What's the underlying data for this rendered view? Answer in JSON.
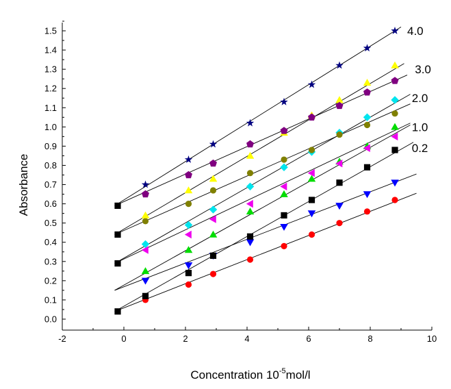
{
  "chart_data": {
    "type": "scatter",
    "xlabel_main": "Concentration 10",
    "xlabel_sup": "-5",
    "xlabel_unit": "mol/l",
    "ylabel": "Absorbance",
    "xlim": [
      -2,
      10
    ],
    "ylim": [
      0.0,
      1.5
    ],
    "x_ticks": [
      "-2",
      "0",
      "2",
      "4",
      "6",
      "8",
      "10"
    ],
    "y_ticks": [
      "0.0",
      "0.1",
      "0.2",
      "0.3",
      "0.4",
      "0.5",
      "0.6",
      "0.7",
      "0.8",
      "0.9",
      "1.0",
      "1.1",
      "1.2",
      "1.3",
      "1.4",
      "1.5"
    ],
    "grid": false,
    "legend": "none",
    "labels": [
      {
        "text": "4.0",
        "x": 9.2,
        "y": 1.5
      },
      {
        "text": "3.0",
        "x": 9.45,
        "y": 1.3
      },
      {
        "text": "2.0",
        "x": 9.35,
        "y": 1.15
      },
      {
        "text": "1.0",
        "x": 9.35,
        "y": 1.0
      },
      {
        "text": "0.2",
        "x": 9.35,
        "y": 0.89
      }
    ],
    "series": [
      {
        "marker": "circle",
        "color": "#ff0000",
        "x": [
          0.7,
          2.1,
          2.9,
          4.1,
          5.2,
          6.1,
          7.0,
          7.9,
          8.8
        ],
        "y": [
          0.1,
          0.18,
          0.235,
          0.31,
          0.38,
          0.44,
          0.5,
          0.56,
          0.62
        ],
        "fit": [
          [
            -0.3,
            0.04
          ],
          [
            9.5,
            0.655
          ]
        ]
      },
      {
        "marker": "triangle-down",
        "color": "#0000ff",
        "x": [
          0.7,
          2.1,
          2.9,
          4.1,
          5.2,
          6.1,
          7.0,
          7.9,
          8.8
        ],
        "y": [
          0.2,
          0.28,
          0.33,
          0.4,
          0.48,
          0.55,
          0.59,
          0.65,
          0.71
        ],
        "fit": [
          [
            -0.3,
            0.15
          ],
          [
            9.5,
            0.755
          ]
        ]
      },
      {
        "marker": "square",
        "color": "#000000",
        "x": [
          -0.2,
          0.7,
          2.1,
          2.9,
          4.1,
          5.2,
          6.1,
          7.0,
          7.9,
          8.8
        ],
        "y": [
          0.04,
          0.12,
          0.24,
          0.33,
          0.43,
          0.54,
          0.62,
          0.71,
          0.79,
          0.88
        ],
        "fit": [
          [
            -0.3,
            0.04
          ],
          [
            9.4,
            0.92
          ]
        ]
      },
      {
        "marker": "triangle-up",
        "color": "#00dd00",
        "x": [
          0.7,
          2.1,
          2.9,
          4.1,
          5.2,
          6.1,
          7.0,
          7.9,
          8.8
        ],
        "y": [
          0.25,
          0.36,
          0.44,
          0.56,
          0.65,
          0.73,
          0.82,
          0.9,
          1.0
        ],
        "fit": [
          [
            -0.3,
            0.15
          ],
          [
            9.3,
            1.01
          ]
        ]
      },
      {
        "marker": "triangle-left",
        "color": "#ee00ee",
        "x": [
          0.7,
          2.1,
          2.9,
          4.1,
          5.2,
          6.1,
          7.0,
          7.9,
          8.8
        ],
        "y": [
          0.36,
          0.44,
          0.52,
          0.6,
          0.69,
          0.76,
          0.81,
          0.89,
          0.95
        ],
        "fit": [
          [
            -0.3,
            0.29
          ],
          [
            9.3,
            1.02
          ]
        ]
      },
      {
        "marker": "diamond",
        "color": "#00e5ee",
        "x": [
          0.7,
          2.1,
          2.9,
          4.1,
          5.2,
          6.1,
          7.0,
          7.9,
          8.8
        ],
        "y": [
          0.39,
          0.49,
          0.57,
          0.69,
          0.79,
          0.87,
          0.97,
          1.05,
          1.14
        ],
        "fit": [
          [
            -0.3,
            0.29
          ],
          [
            9.3,
            1.17
          ]
        ]
      },
      {
        "marker": "circle",
        "color": "#808000",
        "x": [
          -0.2,
          0.7,
          2.1,
          2.9,
          4.1,
          5.2,
          6.1,
          7.0,
          7.9,
          8.8
        ],
        "y": [
          0.29,
          0.51,
          0.6,
          0.67,
          0.76,
          0.83,
          0.88,
          0.96,
          1.01,
          1.07
        ],
        "fit": [
          [
            -0.3,
            0.44
          ],
          [
            9.3,
            1.12
          ]
        ]
      },
      {
        "marker": "triangle-up",
        "color": "#ffff00",
        "x": [
          0.7,
          2.1,
          2.9,
          4.1,
          5.2,
          6.1,
          7.0,
          7.9,
          8.8
        ],
        "y": [
          0.54,
          0.67,
          0.73,
          0.85,
          0.97,
          1.06,
          1.14,
          1.23,
          1.32
        ],
        "fit": [
          [
            -0.3,
            0.44
          ],
          [
            9.1,
            1.33
          ]
        ]
      },
      {
        "marker": "pentagon",
        "color": "#800080",
        "x": [
          -0.2,
          0.7,
          2.1,
          2.9,
          4.1,
          5.2,
          6.1,
          7.0,
          7.9,
          8.8
        ],
        "y": [
          0.44,
          0.65,
          0.75,
          0.81,
          0.91,
          0.98,
          1.05,
          1.11,
          1.18,
          1.24
        ],
        "fit": [
          [
            -0.3,
            0.59
          ],
          [
            9.2,
            1.27
          ]
        ]
      },
      {
        "marker": "star",
        "color": "#000080",
        "x": [
          -0.2,
          0.7,
          2.1,
          2.9,
          4.1,
          5.2,
          6.1,
          7.0,
          7.9,
          8.8
        ],
        "y": [
          0.59,
          0.7,
          0.83,
          0.91,
          1.02,
          1.13,
          1.22,
          1.32,
          1.41,
          1.5
        ],
        "fit": [
          [
            -0.3,
            0.59
          ],
          [
            9.0,
            1.52
          ]
        ]
      }
    ]
  }
}
